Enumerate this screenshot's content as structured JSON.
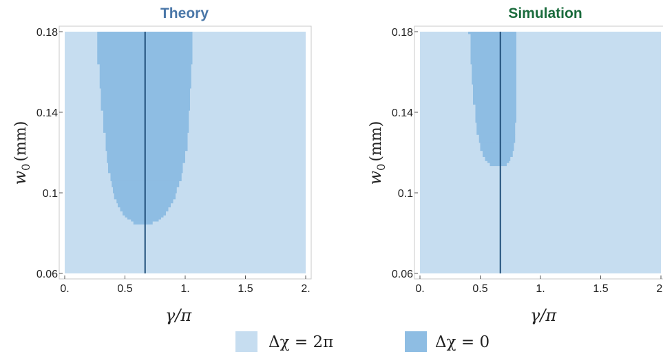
{
  "colors": {
    "region_2pi": "#c6ddf0",
    "region_0": "#8ebde3",
    "line": "#1f4e79",
    "frame": "#c8c8c8",
    "theory_title": "#4a77a8",
    "simulation_title": "#1a6b3c"
  },
  "legend": [
    {
      "label": "Δχ = 2π",
      "color": "#c6ddf0"
    },
    {
      "label": "Δχ = 0",
      "color": "#8ebde3"
    }
  ],
  "chart_data": [
    {
      "type": "heatmap",
      "title": "Theory",
      "xlabel": "γ/π",
      "ylabel": "w0",
      "ylabel_sub": "0",
      "ylabel_unit": "(mm)",
      "xlim": [
        0,
        2
      ],
      "ylim": [
        0.06,
        0.18
      ],
      "x_ticks": [
        0,
        0.5,
        1,
        1.5,
        2
      ],
      "x_tick_labels": [
        "0.",
        "0.5",
        "1.",
        "1.5",
        "2."
      ],
      "y_ticks": [
        0.06,
        0.1,
        0.14,
        0.18
      ],
      "y_tick_labels": [
        "0.06",
        "0.1",
        "0.14",
        "0.18"
      ],
      "background_region": "Δχ = 2π",
      "vertical_line_x": 0.667,
      "region_dchi_0": {
        "label": "Δχ = 0",
        "rows": [
          [
            0.18,
            0.27,
            1.06
          ],
          [
            0.17,
            0.27,
            1.06
          ],
          [
            0.164,
            0.29,
            1.05
          ],
          [
            0.152,
            0.3,
            1.04
          ],
          [
            0.141,
            0.32,
            1.03
          ],
          [
            0.13,
            0.34,
            1.02
          ],
          [
            0.121,
            0.35,
            1.0
          ],
          [
            0.115,
            0.36,
            0.98
          ],
          [
            0.11,
            0.38,
            0.97
          ],
          [
            0.106,
            0.39,
            0.95
          ],
          [
            0.103,
            0.4,
            0.93
          ],
          [
            0.1,
            0.41,
            0.92
          ],
          [
            0.097,
            0.43,
            0.9
          ],
          [
            0.095,
            0.44,
            0.88
          ],
          [
            0.093,
            0.46,
            0.86
          ],
          [
            0.091,
            0.48,
            0.84
          ],
          [
            0.089,
            0.5,
            0.82
          ],
          [
            0.088,
            0.52,
            0.8
          ],
          [
            0.087,
            0.55,
            0.78
          ],
          [
            0.086,
            0.57,
            0.73
          ]
        ]
      }
    },
    {
      "type": "heatmap",
      "title": "Simulation",
      "xlabel": "γ/π",
      "ylabel": "w0",
      "ylabel_sub": "0",
      "ylabel_unit": "(mm)",
      "xlim": [
        0,
        2
      ],
      "ylim": [
        0.06,
        0.18
      ],
      "x_ticks": [
        0,
        0.5,
        1,
        1.5,
        2
      ],
      "x_tick_labels": [
        "0.",
        "0.5",
        "1.",
        "1.5",
        "2."
      ],
      "y_ticks": [
        0.06,
        0.1,
        0.14,
        0.18
      ],
      "y_tick_labels": [
        "0.06",
        "0.1",
        "0.14",
        "0.18"
      ],
      "background_region": "Δχ = 2π",
      "vertical_line_x": 0.667,
      "region_dchi_0": {
        "label": "Δχ = 0",
        "rows": [
          [
            0.18,
            0.4,
            0.8
          ],
          [
            0.179,
            0.42,
            0.8
          ],
          [
            0.164,
            0.43,
            0.8
          ],
          [
            0.154,
            0.44,
            0.8
          ],
          [
            0.144,
            0.46,
            0.8
          ],
          [
            0.135,
            0.47,
            0.79
          ],
          [
            0.129,
            0.49,
            0.79
          ],
          [
            0.125,
            0.5,
            0.78
          ],
          [
            0.121,
            0.52,
            0.77
          ],
          [
            0.118,
            0.54,
            0.75
          ],
          [
            0.116,
            0.56,
            0.74
          ],
          [
            0.115,
            0.58,
            0.72
          ]
        ]
      }
    }
  ]
}
